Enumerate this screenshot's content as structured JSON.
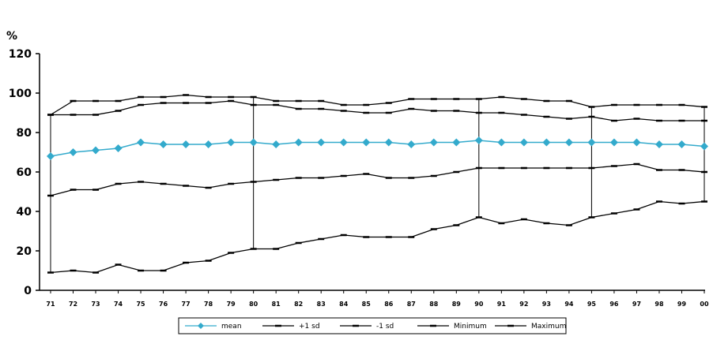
{
  "chart_data": {
    "type": "line",
    "title": "",
    "ylabel": "%",
    "xlabel": "",
    "ylim": [
      0,
      120
    ],
    "yticks": [
      0,
      20,
      40,
      60,
      80,
      100,
      120
    ],
    "categories": [
      "71",
      "72",
      "73",
      "74",
      "75",
      "76",
      "77",
      "78",
      "79",
      "80",
      "81",
      "82",
      "83",
      "84",
      "85",
      "86",
      "87",
      "88",
      "89",
      "90",
      "91",
      "92",
      "93",
      "94",
      "95",
      "96",
      "97",
      "98",
      "99",
      "00"
    ],
    "legend_position": "bottom",
    "grid": false,
    "series": [
      {
        "name": "mean",
        "key": "mean",
        "color": "#33aacc",
        "marker": "diamond",
        "values": [
          68,
          70,
          71,
          72,
          75,
          74,
          74,
          74,
          75,
          75,
          74,
          75,
          75,
          75,
          75,
          75,
          74,
          75,
          75,
          76,
          75,
          75,
          75,
          75,
          75,
          75,
          75,
          74,
          74,
          73
        ]
      },
      {
        "name": "+1 sd",
        "key": "plus_sd",
        "color": "#000000",
        "marker": "dash",
        "values": [
          89,
          89,
          89,
          91,
          94,
          95,
          95,
          95,
          96,
          94,
          94,
          92,
          92,
          91,
          90,
          90,
          92,
          91,
          91,
          90,
          90,
          89,
          88,
          87,
          88,
          86,
          87,
          86,
          86,
          86
        ]
      },
      {
        "name": "-1 sd",
        "key": "minus_sd",
        "color": "#000000",
        "marker": "dash",
        "values": [
          48,
          51,
          51,
          54,
          55,
          54,
          53,
          52,
          54,
          55,
          56,
          57,
          57,
          58,
          59,
          57,
          57,
          58,
          60,
          62,
          62,
          62,
          62,
          62,
          62,
          63,
          64,
          61,
          61,
          60
        ]
      },
      {
        "name": "Minimum",
        "key": "minimum",
        "color": "#000000",
        "marker": "dash",
        "values": [
          9,
          10,
          9,
          13,
          10,
          10,
          14,
          15,
          19,
          21,
          21,
          24,
          26,
          28,
          27,
          27,
          27,
          31,
          33,
          37,
          34,
          36,
          34,
          33,
          37,
          39,
          41,
          45,
          44,
          45
        ]
      },
      {
        "name": "Maximum",
        "key": "maximum",
        "color": "#000000",
        "marker": "dash",
        "values": [
          89,
          96,
          96,
          96,
          98,
          98,
          99,
          98,
          98,
          98,
          96,
          96,
          96,
          94,
          94,
          95,
          97,
          97,
          97,
          97,
          98,
          97,
          96,
          96,
          93,
          94,
          94,
          94,
          94,
          93
        ]
      }
    ],
    "error_bars": [
      {
        "x": "71",
        "low": 9,
        "high": 89
      },
      {
        "x": "80",
        "low": 21,
        "high": 98
      },
      {
        "x": "90",
        "low": 37,
        "high": 97
      },
      {
        "x": "95",
        "low": 37,
        "high": 93
      },
      {
        "x": "00",
        "low": 45,
        "high": 93
      }
    ]
  }
}
